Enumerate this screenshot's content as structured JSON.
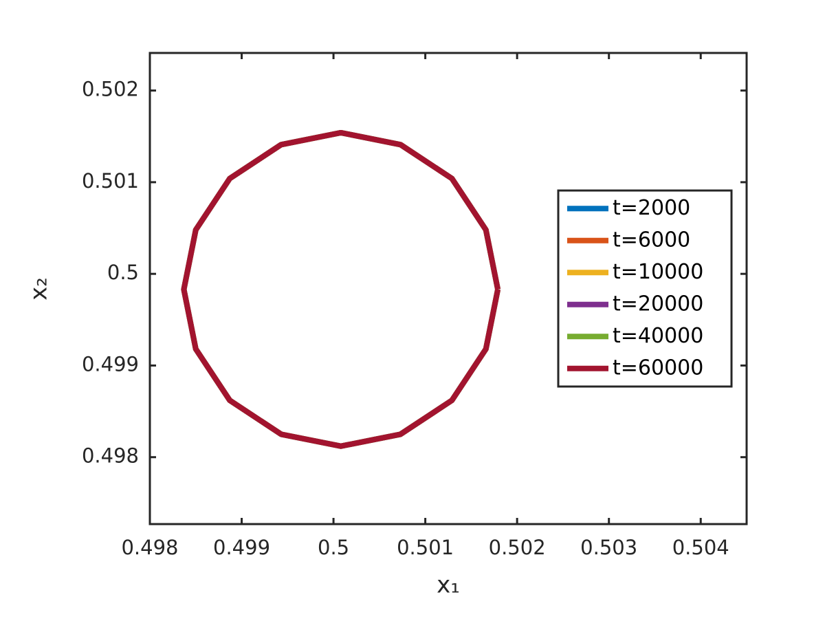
{
  "chart_data": {
    "type": "line",
    "xlabel": "x₁",
    "ylabel": "x₂",
    "xlim": [
      0.498,
      0.5045
    ],
    "ylim": [
      0.49727,
      0.50241
    ],
    "xticks": [
      0.498,
      0.499,
      0.5,
      0.501,
      0.502,
      0.503,
      0.504
    ],
    "yticks": [
      0.498,
      0.499,
      0.5,
      0.501,
      0.502
    ],
    "legend": "east",
    "series": [
      {
        "name": "t=2000",
        "color": "#0072bd",
        "x": [
          0.50179,
          0.50166,
          0.50129,
          0.50073,
          0.50008,
          0.49943,
          0.49887,
          0.4985,
          0.49837,
          0.4985,
          0.49887,
          0.49943,
          0.50008,
          0.50073,
          0.50129,
          0.50166,
          0.50179
        ],
        "values": [
          0.49983,
          0.50048,
          0.50104,
          0.50141,
          0.50154,
          0.50141,
          0.50104,
          0.50048,
          0.49983,
          0.49918,
          0.49862,
          0.49825,
          0.49812,
          0.49825,
          0.49862,
          0.49918,
          0.49983
        ]
      },
      {
        "name": "t=6000",
        "color": "#d95319",
        "x": [
          0.50179,
          0.50166,
          0.50129,
          0.50073,
          0.50008,
          0.49943,
          0.49887,
          0.4985,
          0.49837,
          0.4985,
          0.49887,
          0.49943,
          0.50008,
          0.50073,
          0.50129,
          0.50166,
          0.50179
        ],
        "values": [
          0.49983,
          0.50048,
          0.50104,
          0.50141,
          0.50154,
          0.50141,
          0.50104,
          0.50048,
          0.49983,
          0.49918,
          0.49862,
          0.49825,
          0.49812,
          0.49825,
          0.49862,
          0.49918,
          0.49983
        ]
      },
      {
        "name": "t=10000",
        "color": "#edb120",
        "x": [
          0.50179,
          0.50166,
          0.50129,
          0.50073,
          0.50008,
          0.49943,
          0.49887,
          0.4985,
          0.49837,
          0.4985,
          0.49887,
          0.49943,
          0.50008,
          0.50073,
          0.50129,
          0.50166,
          0.50179
        ],
        "values": [
          0.49983,
          0.50048,
          0.50104,
          0.50141,
          0.50154,
          0.50141,
          0.50104,
          0.50048,
          0.49983,
          0.49918,
          0.49862,
          0.49825,
          0.49812,
          0.49825,
          0.49862,
          0.49918,
          0.49983
        ]
      },
      {
        "name": "t=20000",
        "color": "#7e2f8e",
        "x": [
          0.50179,
          0.50166,
          0.50129,
          0.50073,
          0.50008,
          0.49943,
          0.49887,
          0.4985,
          0.49837,
          0.4985,
          0.49887,
          0.49943,
          0.50008,
          0.50073,
          0.50129,
          0.50166,
          0.50179
        ],
        "values": [
          0.49983,
          0.50048,
          0.50104,
          0.50141,
          0.50154,
          0.50141,
          0.50104,
          0.50048,
          0.49983,
          0.49918,
          0.49862,
          0.49825,
          0.49812,
          0.49825,
          0.49862,
          0.49918,
          0.49983
        ]
      },
      {
        "name": "t=40000",
        "color": "#77ac30",
        "x": [
          0.50179,
          0.50166,
          0.50129,
          0.50073,
          0.50008,
          0.49943,
          0.49887,
          0.4985,
          0.49837,
          0.4985,
          0.49887,
          0.49943,
          0.50008,
          0.50073,
          0.50129,
          0.50166,
          0.50179
        ],
        "values": [
          0.49983,
          0.50048,
          0.50104,
          0.50141,
          0.50154,
          0.50141,
          0.50104,
          0.50048,
          0.49983,
          0.49918,
          0.49862,
          0.49825,
          0.49812,
          0.49825,
          0.49862,
          0.49918,
          0.49983
        ]
      },
      {
        "name": "t=60000",
        "color": "#a2142f",
        "x": [
          0.50179,
          0.50166,
          0.50129,
          0.50073,
          0.50008,
          0.49943,
          0.49887,
          0.4985,
          0.49837,
          0.4985,
          0.49887,
          0.49943,
          0.50008,
          0.50073,
          0.50129,
          0.50166,
          0.50179
        ],
        "values": [
          0.49983,
          0.50048,
          0.50104,
          0.50141,
          0.50154,
          0.50141,
          0.50104,
          0.50048,
          0.49983,
          0.49918,
          0.49862,
          0.49825,
          0.49812,
          0.49825,
          0.49862,
          0.49918,
          0.49983
        ]
      }
    ]
  }
}
